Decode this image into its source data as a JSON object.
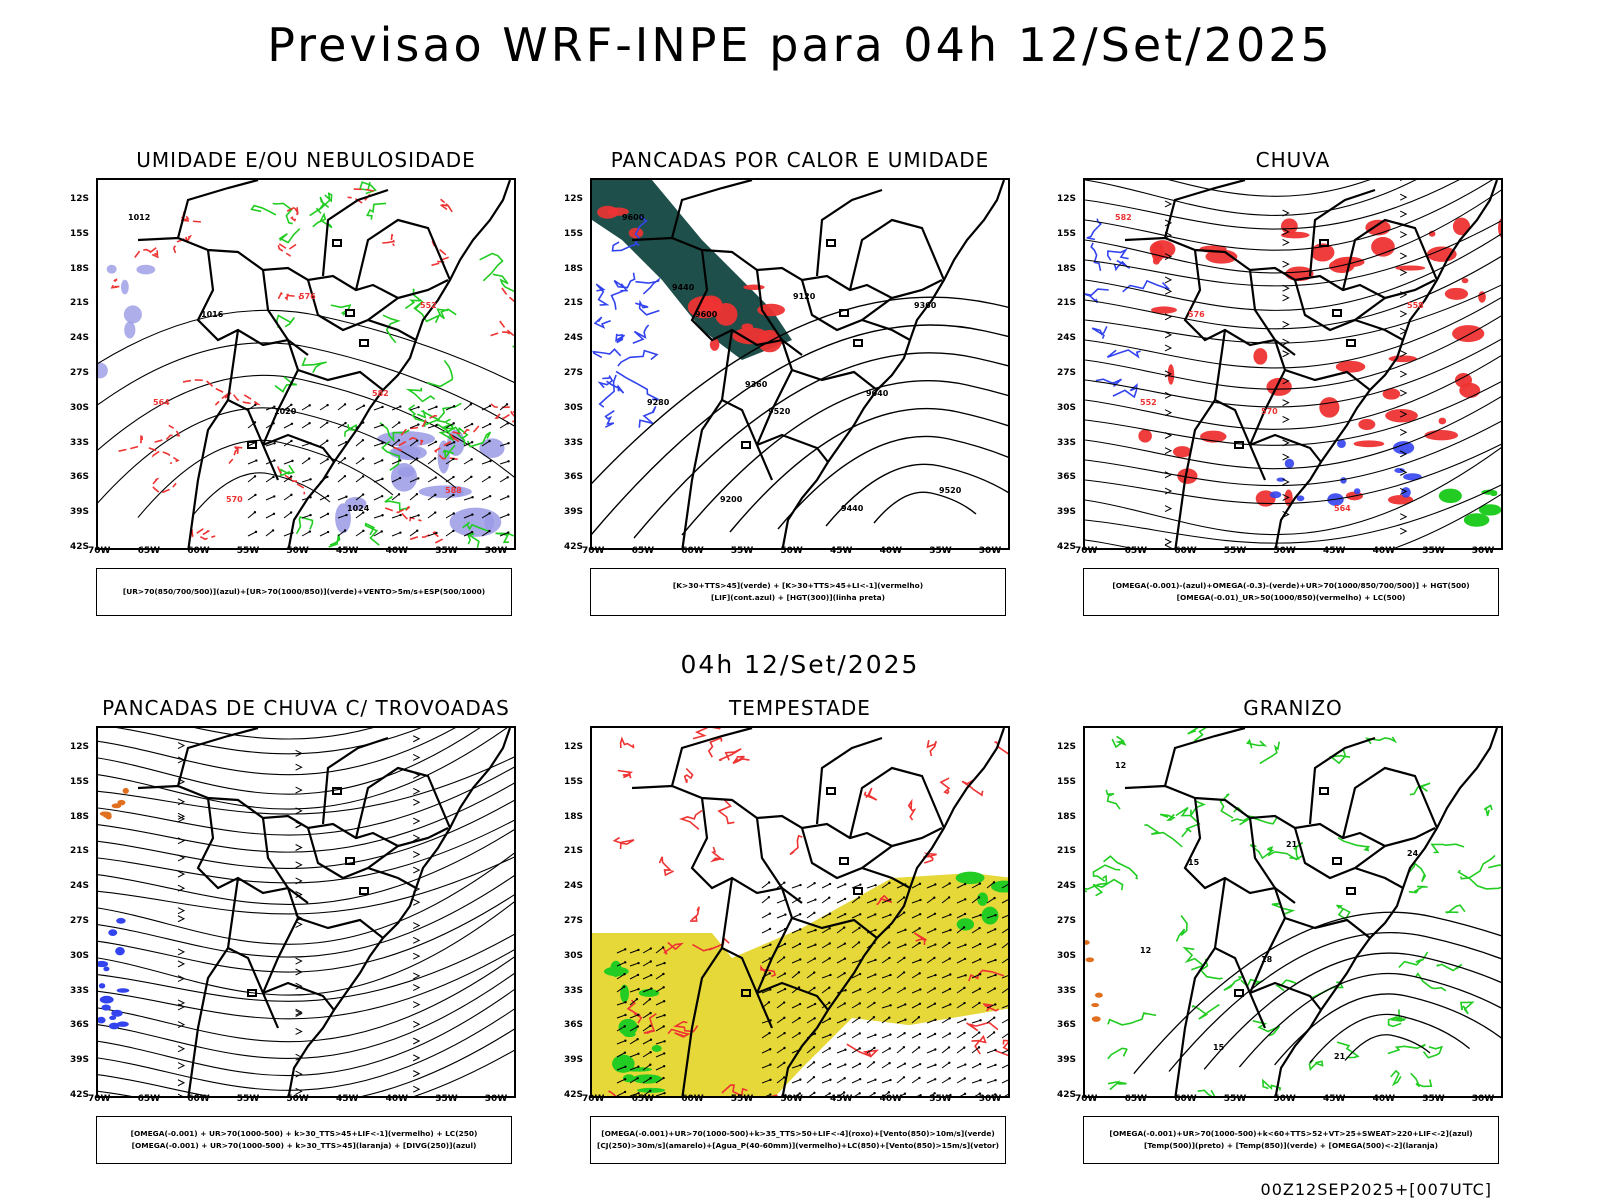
{
  "main_title": "Previsao WRF-INPE  para 04h 12/Set/2025",
  "mid_title": "04h 12/Set/2025",
  "footer_stamp": "00Z12SEP2025+[007UTC]",
  "lat_labels": [
    "12S",
    "15S",
    "18S",
    "21S",
    "24S",
    "27S",
    "30S",
    "33S",
    "36S",
    "39S",
    "42S"
  ],
  "lon_labels": [
    "70W",
    "65W",
    "60W",
    "55W",
    "50W",
    "45W",
    "40W",
    "35W",
    "30W"
  ],
  "colors": {
    "red": "#ee3333",
    "green": "#22cc22",
    "blue": "#3344ee",
    "purple": "#9a9ae6",
    "teal": "#1f4f4a",
    "yellow": "#e6d838",
    "orange": "#e07020"
  },
  "panels": [
    {
      "title": "UMIDADE E/OU NEBULOSIDADE",
      "legend": [
        "[UR>70(850/700/500)](azul)+[UR>70(1000/850)](verde)+VENTO>5m/s+ESP(500/1000)"
      ],
      "contour_labels": [
        "1012",
        "1016",
        "1020",
        "1024",
        "552",
        "564",
        "570",
        "576",
        "582",
        "588"
      ]
    },
    {
      "title": "PANCADAS POR CALOR E UMIDADE",
      "legend": [
        "[K>30+TTS>45](verde) + [K>30+TTS>45+LI<-1](vermelho)",
        "[LIF](cont.azul) + [HGT(300)](linha preta)"
      ],
      "contour_labels": [
        "9600",
        "9600",
        "9520",
        "9440",
        "9360",
        "9280",
        "9200",
        "9120",
        "9040",
        "9520",
        "9440",
        "9360"
      ]
    },
    {
      "title": "CHUVA",
      "legend": [
        "[OMEGA(-0.001)-(azul)+OMEGA(-0.3)-(verde)+UR>70(1000/850/700/500)] + HGT(500)",
        "[OMEGA(-0.01)_UR>50(1000/850)(vermelho) + LC(500)"
      ],
      "contour_labels": [
        "582",
        "576",
        "570",
        "564",
        "558",
        "552"
      ]
    },
    {
      "title": "PANCADAS DE CHUVA C/ TROVOADAS",
      "legend": [
        "[OMEGA(-0.001) + UR>70(1000-500) + k>30_TTS>45+LIF<-1](vermelho) + LC(250)",
        "[OMEGA(-0.001) + UR>70(1000-500) + k>30_TTS>45](laranja) + [DIVG(250)](azul)"
      ],
      "contour_labels": []
    },
    {
      "title": "TEMPESTADE",
      "legend": [
        "[OMEGA(-0.001)+UR>70(1000-500)+k>35_TTS>50+LIF<-4](roxo)+[Vento(850)>10m/s](verde)",
        "[CJ(250)>30m/s](amarelo)+[Agua_P(40-60mm)](vermelho)+LC(850)+[Vento(850)>15m/s](vetor)"
      ],
      "contour_labels": []
    },
    {
      "title": "GRANIZO",
      "legend": [
        "[OMEGA(-0.001)+UR>70(1000-500)+k<60+TTS>52+VT>25+SWEAT>220+LIF<-2](azul)",
        "[Temp(500)](preto) + [Temp(850)](verde) + [OMEGA(500)<-2](laranja)"
      ],
      "contour_labels": [
        "12",
        "15",
        "18",
        "21",
        "24",
        "12",
        "15",
        "21"
      ]
    }
  ]
}
